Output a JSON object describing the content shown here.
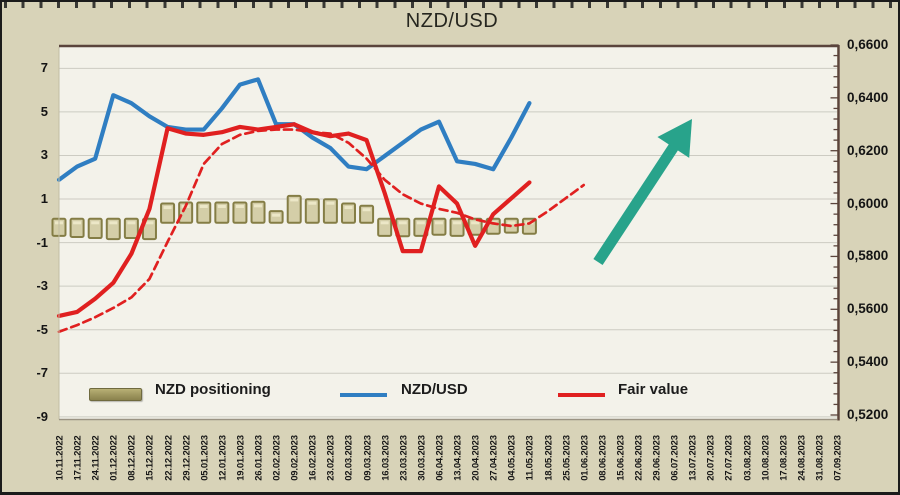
{
  "title": "NZD/USD",
  "colors": {
    "frame_bg": "#d8d3b8",
    "plot_bg": "#f3f2ea",
    "grid": "#cccbc2",
    "blue_line": "#2f7ec2",
    "red_line": "#e02020",
    "bar_face": "#d4cea8",
    "bar_face_light": "#ece7c7",
    "bar_edge": "#847d45",
    "arrow": "#28a38b",
    "axis_line": "#5a443c",
    "plot_bottom_line": "#9a9383",
    "plot_left_line": "#c2bda4",
    "text": "#1c1c1c"
  },
  "legend": {
    "items": [
      {
        "label": "NZD positioning",
        "swatch": "bar"
      },
      {
        "label": "NZD/USD",
        "swatch": "blue-line"
      },
      {
        "label": "Fair value",
        "swatch": "red-line"
      }
    ]
  },
  "chart_data": {
    "type": "combo",
    "title": "NZD/USD",
    "grid": true,
    "legend_position": "bottom-inside",
    "categories": [
      "10.11.2022",
      "17.11.2022",
      "24.11.2022",
      "01.12.2022",
      "08.12.2022",
      "15.12.2022",
      "22.12.2022",
      "29.12.2022",
      "05.01.2023",
      "12.01.2023",
      "19.01.2023",
      "26.01.2023",
      "02.02.2023",
      "09.02.2023",
      "16.02.2023",
      "23.02.2023",
      "02.03.2023",
      "09.03.2023",
      "16.03.2023",
      "23.03.2023",
      "30.03.2023",
      "06.04.2023",
      "13.04.2023",
      "20.04.2023",
      "27.04.2023",
      "04.05.2023",
      "11.05.2023",
      "18.05.2023",
      "25.05.2023",
      "01.06.2023",
      "08.06.2023",
      "15.06.2023",
      "22.06.2023",
      "29.06.2023",
      "06.07.2023",
      "13.07.2023",
      "20.07.2023",
      "27.07.2023",
      "03.08.2023",
      "10.08.2023",
      "17.08.2023",
      "24.08.2023",
      "31.08.2023",
      "07.09.2023"
    ],
    "left_axis": {
      "min": -9,
      "max": 7,
      "ticks": [
        7,
        5,
        3,
        1,
        -1,
        -3,
        -5,
        -7,
        -9
      ]
    },
    "right_axis": {
      "min": 0.52,
      "max": 0.66,
      "minor_step": 0.004,
      "ticks": [
        {
          "value": 0.66,
          "label": "0,6600"
        },
        {
          "value": 0.64,
          "label": "0,6400"
        },
        {
          "value": 0.62,
          "label": "0,6200"
        },
        {
          "value": 0.6,
          "label": "0,6000"
        },
        {
          "value": 0.58,
          "label": "0,5800"
        },
        {
          "value": 0.56,
          "label": "0,5600"
        },
        {
          "value": 0.54,
          "label": "0,5400"
        },
        {
          "value": 0.52,
          "label": "0,5200"
        }
      ]
    },
    "series": [
      {
        "name": "NZD positioning",
        "type": "bar",
        "axis": "left",
        "values": [
          -0.6,
          -0.65,
          -0.7,
          -0.75,
          -0.7,
          -0.75,
          0.7,
          0.75,
          0.75,
          0.75,
          0.75,
          0.78,
          0.35,
          1.05,
          0.9,
          0.9,
          0.7,
          0.6,
          -0.6,
          -0.62,
          -0.6,
          -0.55,
          -0.6,
          -0.55,
          -0.5,
          -0.45,
          -0.5
        ]
      },
      {
        "name": "NZD/USD",
        "type": "line",
        "axis": "right",
        "dashed": false,
        "values": [
          0.609,
          0.614,
          0.617,
          0.641,
          0.638,
          0.633,
          0.629,
          0.628,
          0.628,
          0.636,
          0.645,
          0.647,
          0.63,
          0.63,
          0.625,
          0.621,
          0.614,
          0.613,
          0.618,
          0.623,
          0.628,
          0.631,
          0.616,
          0.615,
          0.613,
          0.625,
          0.638
        ]
      },
      {
        "name": "Fair value",
        "type": "line",
        "axis": "right",
        "dashed": false,
        "values": [
          0.5575,
          0.559,
          0.564,
          0.57,
          0.581,
          0.598,
          0.6285,
          0.6265,
          0.626,
          0.627,
          0.629,
          0.628,
          0.629,
          0.63,
          0.627,
          0.6255,
          0.6265,
          0.624,
          0.604,
          0.582,
          0.582,
          0.6065,
          0.6,
          0.584,
          0.596,
          0.602,
          0.608
        ]
      },
      {
        "name": "Fair value (forecast, dashed)",
        "type": "line",
        "axis": "right",
        "dashed": true,
        "values": [
          0.5515,
          0.554,
          0.557,
          0.5605,
          0.5645,
          0.5715,
          0.5855,
          0.599,
          0.615,
          0.6225,
          0.626,
          0.6275,
          0.628,
          0.628,
          0.627,
          0.6265,
          0.623,
          0.617,
          0.609,
          0.6035,
          0.6,
          0.598,
          0.5965,
          0.594,
          0.5925,
          0.5915,
          0.5925,
          0.597,
          0.602,
          0.607
        ]
      }
    ],
    "annotation_arrow": {
      "meaning": "bullish up-trend arrow",
      "tail": [
        596,
        260
      ],
      "tip": [
        690,
        117
      ],
      "shaft_width": 11,
      "head_width": 38,
      "head_length": 34,
      "color": "#28a38b"
    }
  }
}
